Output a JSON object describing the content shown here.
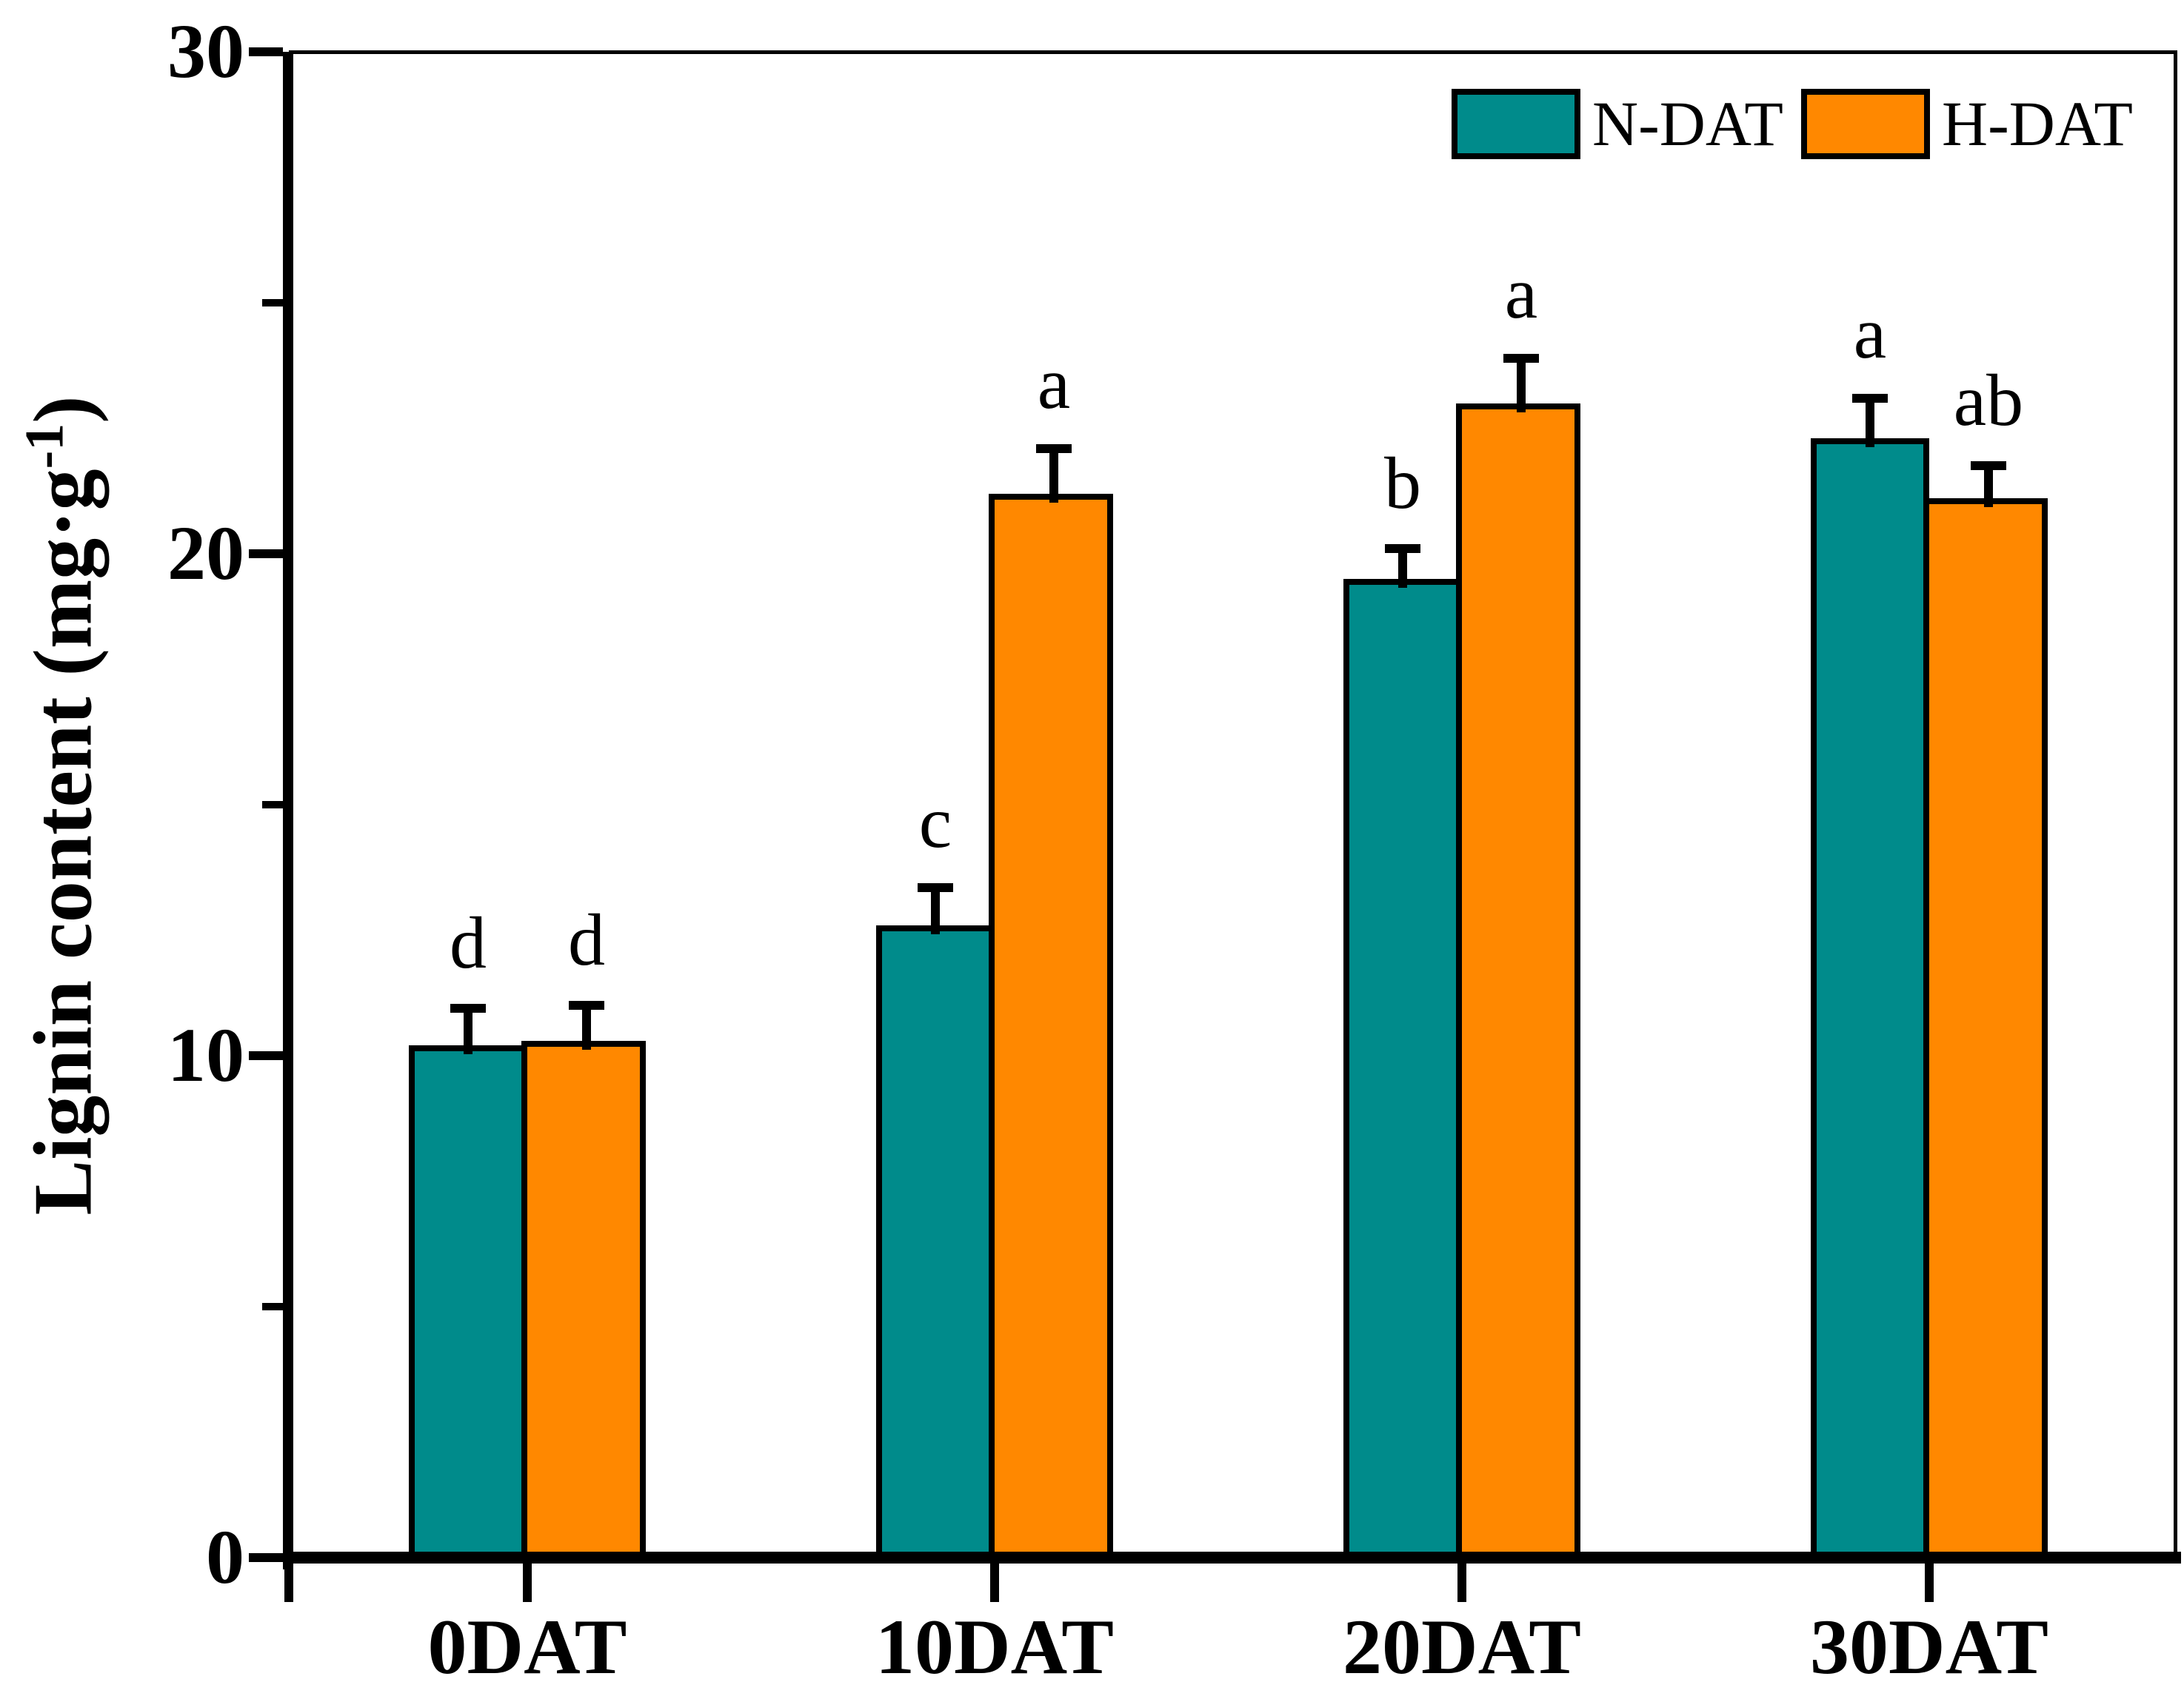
{
  "chart_data": {
    "type": "bar",
    "title": "",
    "categories": [
      "0DAT",
      "10DAT",
      "20DAT",
      "30DAT"
    ],
    "series": [
      {
        "name": "N-DAT",
        "color": "#008B8B",
        "values": [
          10.2,
          12.6,
          19.5,
          22.3
        ],
        "errors": [
          0.75,
          0.75,
          0.6,
          0.8
        ],
        "sig_letters": [
          "d",
          "c",
          "b",
          "a"
        ]
      },
      {
        "name": "H-DAT",
        "color": "#FF8800",
        "values": [
          10.3,
          21.2,
          23.0,
          21.1
        ],
        "errors": [
          0.7,
          0.9,
          0.9,
          0.65
        ],
        "sig_letters": [
          "d",
          "a",
          "a",
          "ab"
        ]
      }
    ],
    "xlabel": "",
    "ylabel": "Lignin content (mg·g⁻¹)",
    "ylabel_parts": {
      "main": "Lignin content (mg·g",
      "sup": "-1",
      "close": ")"
    },
    "ylim": [
      0,
      30
    ],
    "yticks": [
      {
        "value": 0,
        "label": "0"
      },
      {
        "value": 10,
        "label": "10"
      },
      {
        "value": 20,
        "label": "20"
      },
      {
        "value": 30,
        "label": "30"
      }
    ],
    "yminorticks": [
      5,
      15,
      25
    ],
    "grid": false,
    "error_bars": true,
    "legend": {
      "position": "top-right",
      "items": [
        {
          "label": "N-DAT",
          "color": "#008B8B"
        },
        {
          "label": "H-DAT",
          "color": "#FF8800"
        }
      ]
    }
  }
}
